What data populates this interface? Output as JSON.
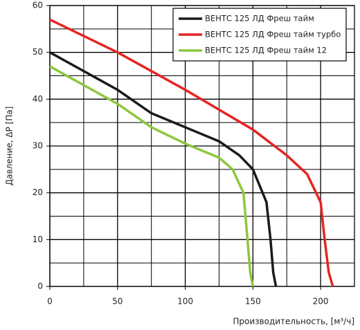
{
  "chart_data": {
    "type": "line",
    "y_label": "Давление, ΔP [Па]",
    "x_label": "Производительность, [м³/ч]",
    "xlim": [
      0,
      225
    ],
    "xticks": [
      0,
      50,
      100,
      150,
      200
    ],
    "xminor_ticks": [
      25,
      75,
      125,
      175,
      225
    ],
    "ylim": [
      0,
      60
    ],
    "yticks": [
      0,
      10,
      20,
      30,
      40,
      50,
      60
    ],
    "yminor_ticks": [
      5,
      15,
      25,
      35,
      45,
      55
    ],
    "grid": true,
    "legend": "upper right",
    "series": [
      {
        "name": "ВЕНТС 125  ЛД  Фреш тайм",
        "color": "#1a1a1a",
        "x": [
          0,
          25,
          50,
          75,
          100,
          125,
          140,
          150,
          160,
          163,
          165,
          167
        ],
        "values": [
          50,
          46,
          42,
          37,
          34,
          31,
          28,
          25,
          18,
          10,
          3,
          0
        ]
      },
      {
        "name": "ВЕНТС 125  ЛД Фреш тайм турбо",
        "color": "#e52421",
        "x": [
          0,
          50,
          100,
          150,
          175,
          190,
          200,
          203,
          206,
          209
        ],
        "values": [
          57,
          50,
          42,
          33.5,
          28,
          24,
          18,
          10,
          3,
          0
        ]
      },
      {
        "name": "ВЕНТС 125 ЛД Фреш тайм 12",
        "color": "#8dc63f",
        "x": [
          0,
          25,
          50,
          75,
          100,
          125,
          135,
          143,
          146,
          148,
          150
        ],
        "values": [
          47,
          43,
          39,
          34,
          30.5,
          27.5,
          25,
          20,
          10,
          3,
          0
        ]
      }
    ]
  }
}
